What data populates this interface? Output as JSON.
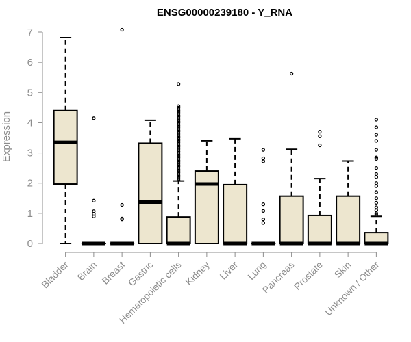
{
  "chart_data": {
    "type": "boxplot",
    "title": "ENSG00000239180 - Y_RNA",
    "ylabel": "Expression",
    "ylim": [
      0,
      7
    ],
    "yticks": [
      0,
      1,
      2,
      3,
      4,
      5,
      6,
      7
    ],
    "categories": [
      "Bladder",
      "Brain",
      "Breast",
      "Gastric",
      "Hematopoietic cells",
      "Kidney",
      "Liver",
      "Lung",
      "Pancreas",
      "Prostate",
      "Skin",
      "Unknown / Other"
    ],
    "box_fill": "#ede6cf",
    "boxes": [
      {
        "name": "Bladder",
        "min": 0,
        "q1": 1.97,
        "median": 3.35,
        "q3": 4.4,
        "max": 6.82,
        "outliers": []
      },
      {
        "name": "Brain",
        "min": 0,
        "q1": 0,
        "median": 0,
        "q3": 0,
        "max": 0,
        "outliers": [
          4.15,
          1.42,
          1.07,
          0.98,
          0.9
        ]
      },
      {
        "name": "Breast",
        "min": 0,
        "q1": 0,
        "median": 0,
        "q3": 0,
        "max": 0,
        "outliers": [
          7.08,
          1.28,
          0.83,
          0.8
        ]
      },
      {
        "name": "Gastric",
        "min": 0,
        "q1": 0,
        "median": 1.37,
        "q3": 3.32,
        "max": 4.08,
        "outliers": []
      },
      {
        "name": "Hematopoietic cells",
        "min": 0,
        "q1": 0,
        "median": 0,
        "q3": 0.88,
        "max": 2.07,
        "outliers": [
          5.28,
          4.55,
          4.5,
          4.45,
          4.4,
          4.35,
          4.3,
          4.25,
          4.2,
          4.15,
          4.1,
          4.05,
          4.0,
          3.95,
          3.9,
          3.85,
          3.8,
          3.75,
          3.7,
          3.65,
          3.6,
          3.55,
          3.5,
          3.45,
          3.4,
          3.35,
          3.3,
          3.25,
          3.2,
          3.15,
          3.1,
          3.05,
          3.0,
          2.95,
          2.9,
          2.85,
          2.8,
          2.75,
          2.7,
          2.65,
          2.6,
          2.55,
          2.5,
          2.45,
          2.4,
          2.35,
          2.3,
          2.25,
          2.2,
          2.15,
          2.1
        ]
      },
      {
        "name": "Kidney",
        "min": 0,
        "q1": 0,
        "median": 1.97,
        "q3": 2.4,
        "max": 3.4,
        "outliers": []
      },
      {
        "name": "Liver",
        "min": 0,
        "q1": 0,
        "median": 0,
        "q3": 1.95,
        "max": 3.47,
        "outliers": []
      },
      {
        "name": "Lung",
        "min": 0,
        "q1": 0,
        "median": 0,
        "q3": 0,
        "max": 0,
        "outliers": [
          3.1,
          2.82,
          2.72,
          1.3,
          1.08,
          0.8,
          0.68
        ]
      },
      {
        "name": "Pancreas",
        "min": 0,
        "q1": 0,
        "median": 0,
        "q3": 1.57,
        "max": 3.12,
        "outliers": [
          5.63
        ]
      },
      {
        "name": "Prostate",
        "min": 0,
        "q1": 0,
        "median": 0,
        "q3": 0.93,
        "max": 2.15,
        "outliers": [
          3.7,
          3.55,
          3.25
        ]
      },
      {
        "name": "Skin",
        "min": 0,
        "q1": 0,
        "median": 0,
        "q3": 1.57,
        "max": 2.73,
        "outliers": []
      },
      {
        "name": "Unknown / Other",
        "min": 0,
        "q1": 0,
        "median": 0,
        "q3": 0.36,
        "max": 0.9,
        "outliers": [
          4.1,
          3.85,
          3.6,
          3.4,
          3.1,
          2.85,
          2.8,
          2.5,
          2.3,
          2.2,
          2.0,
          1.9,
          1.7,
          1.5,
          1.35,
          1.2,
          1.1,
          1.0,
          0.95
        ]
      }
    ]
  }
}
